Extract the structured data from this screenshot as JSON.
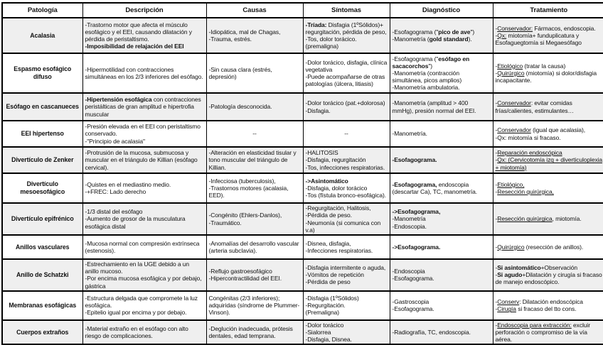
{
  "colors": {
    "shaded_row": "#efefef",
    "border": "#000000",
    "text": "#111111"
  },
  "table": {
    "headers": [
      "Patología",
      "Descripción",
      "Causas",
      "Síntomas",
      "Diagnóstico",
      "Tratamiento"
    ],
    "rows": [
      {
        "patologia": "Acalasia",
        "descripcion": [
          [
            {
              "t": "-Trastorno motor que afecta el músculo esofágico y el EEI, causando dilatación y pérdida de peristaltismo."
            }
          ],
          [
            {
              "t": "-Imposibilidad de relajación del EEI",
              "s": "b"
            }
          ]
        ],
        "causas": [
          [
            {
              "t": "-Idiopática, mal de Chagas,"
            }
          ],
          [
            {
              "t": "-Trauma, estrés."
            }
          ]
        ],
        "sintomas": [
          [
            {
              "t": "-Tríada:",
              "s": "b"
            },
            {
              "t": " Disfagia (1ºSólidos)+ regurgitación, pérdida de peso,"
            }
          ],
          [
            {
              "t": "-Tos, dolor torácico."
            }
          ],
          [
            {
              "t": "(premaligna)"
            }
          ]
        ],
        "diagnostico": [
          [
            {
              "t": "-Esofagograma (\""
            },
            {
              "t": "pico de ave",
              "s": "b"
            },
            {
              "t": "\")"
            }
          ],
          [
            {
              "t": "-Manometría ("
            },
            {
              "t": "gold standard",
              "s": "b"
            },
            {
              "t": ")."
            }
          ]
        ],
        "tratamiento": [
          [
            {
              "t": "-"
            },
            {
              "t": "Conservador:",
              "s": "u"
            },
            {
              "t": " Fármacos, endoscopia."
            }
          ],
          [
            {
              "t": "-"
            },
            {
              "t": "Qx:",
              "s": "u"
            },
            {
              "t": " miotomía+ funduplicatura y Esofaguegtomía si Megaesófago"
            }
          ]
        ]
      },
      {
        "patologia": "Espasmo esofágico difuso",
        "descripcion": [
          [
            {
              "t": "-Hipermotilidad con contracciones simultáneas en los 2/3 inferiores del esófago."
            }
          ]
        ],
        "causas": [
          [
            {
              "t": "-Sin causa clara (estrés, depresión)"
            }
          ]
        ],
        "sintomas": [
          [
            {
              "t": "-Dolor torácico, disfagia, clínica vegetativa"
            }
          ],
          [
            {
              "t": "-Puede acompañarse de otras patologías (úlcera, litiasis)"
            }
          ]
        ],
        "diagnostico": [
          [
            {
              "t": "-Esofagograma (\""
            },
            {
              "t": "esófago en sacacorchos",
              "s": "b"
            },
            {
              "t": "\")"
            }
          ],
          [
            {
              "t": "-Manometría (contracción simultánea, picos amplios)"
            }
          ],
          [
            {
              "t": "-Manometría ambulatoria."
            }
          ]
        ],
        "tratamiento": [
          [
            {
              "t": "-"
            },
            {
              "t": "Etiológico",
              "s": "u"
            },
            {
              "t": " (tratar la causa)"
            }
          ],
          [
            {
              "t": "-"
            },
            {
              "t": "Quirúrgico",
              "s": "u"
            },
            {
              "t": " (miotomía) si dolor/disfagia incapacitante."
            }
          ]
        ]
      },
      {
        "patologia": "Esófago en cascanueces",
        "descripcion": [
          [
            {
              "t": "-Hipertensión esofágica",
              "s": "b"
            },
            {
              "t": " con contracciones peristálticas de gran amplitud e hipertrofia muscular"
            }
          ]
        ],
        "causas": [
          [
            {
              "t": "-Patología desconocida."
            }
          ]
        ],
        "sintomas": [
          [
            {
              "t": "-Dolor torácico (pat.+dolorosa)"
            }
          ],
          [
            {
              "t": "-Disfagia."
            }
          ]
        ],
        "diagnostico": [
          [
            {
              "t": "-Manometría (amplitud > 400 mmHg), presión normal del EEI."
            }
          ]
        ],
        "tratamiento": [
          [
            {
              "t": "-"
            },
            {
              "t": "Conservador",
              "s": "u"
            },
            {
              "t": ": evitar comidas frías/calientes, estimulantes…"
            }
          ]
        ]
      },
      {
        "patologia": "EEI hipertenso",
        "descripcion": [
          [
            {
              "t": "-Presión elevada en el EEI con peristaltismo conservado."
            }
          ],
          [
            {
              "t": "-\"Principio de acalasia\""
            }
          ]
        ],
        "causas": [
          [
            {
              "t": "--"
            }
          ]
        ],
        "sintomas": [
          [
            {
              "t": "--"
            }
          ]
        ],
        "diagnostico": [
          [
            {
              "t": "-Manometría."
            }
          ]
        ],
        "tratamiento": [
          [
            {
              "t": "-"
            },
            {
              "t": "Conservador",
              "s": "u"
            },
            {
              "t": " (igual que acalasia),"
            }
          ],
          [
            {
              "t": "-Qx: miotomía si fracaso."
            }
          ]
        ]
      },
      {
        "patologia": "Divertículo de Zenker",
        "descripcion": [
          [
            {
              "t": "-Protrusión de la mucosa, submucosa y muscular en el triángulo de Killian (esófago cervical)."
            }
          ]
        ],
        "causas": [
          [
            {
              "t": "-Alteración en elasticidad tisular y tono muscular del triángulo de Killian."
            }
          ]
        ],
        "sintomas": [
          [
            {
              "t": "-HALITOSIS"
            }
          ],
          [
            {
              "t": "-Disfagia, regurgitación"
            }
          ],
          [
            {
              "t": "-Tos, infecciones respiratorias."
            }
          ]
        ],
        "diagnostico": [
          [
            {
              "t": "-Esofagograma.",
              "s": "b"
            }
          ]
        ],
        "tratamiento": [
          [
            {
              "t": "-"
            },
            {
              "t": "Reparación endoscópica",
              "s": "u"
            }
          ],
          [
            {
              "t": "-"
            },
            {
              "t": "Qx: (Cervicotomía izq + diverticuloplexia + miotomía)",
              "s": "u"
            }
          ]
        ]
      },
      {
        "patologia": "Divertículo mesoesofágico",
        "descripcion": [
          [
            {
              "t": "-Quistes en el mediastino medio."
            }
          ],
          [
            {
              "t": "-+FREC: Lado derecho"
            }
          ]
        ],
        "causas": [
          [
            {
              "t": "-Infecciosa (tuberculosis),"
            }
          ],
          [
            {
              "t": "-Trastornos motores (acalasia, EED)."
            }
          ]
        ],
        "sintomas": [
          [
            {
              "t": "->Asintomático",
              "s": "b"
            }
          ],
          [
            {
              "t": "-Disfagia, dolor torácico"
            }
          ],
          [
            {
              "t": "-Tos (fístula bronco-esofágica)."
            }
          ]
        ],
        "diagnostico": [
          [
            {
              "t": "-Esofagograma,",
              "s": "b"
            },
            {
              "t": " endoscopia (descartar Ca), TC, manometría."
            }
          ]
        ],
        "tratamiento": [
          [
            {
              "t": "-"
            },
            {
              "t": "Etiológico,",
              "s": "u"
            }
          ],
          [
            {
              "t": "-"
            },
            {
              "t": "Resección quirúrgica,",
              "s": "u"
            }
          ]
        ]
      },
      {
        "patologia": "Divertículo epifrénico",
        "descripcion": [
          [
            {
              "t": "-1/3 distal del esófago"
            }
          ],
          [
            {
              "t": "-Aumento de grosor de la musculatura esofágica distal"
            }
          ]
        ],
        "causas": [
          [
            {
              "t": "-Congénito (Ehlers-Danlos),"
            }
          ],
          [
            {
              "t": "-Traumático."
            }
          ]
        ],
        "sintomas": [
          [
            {
              "t": "-Regurgitación, Halitosis,"
            }
          ],
          [
            {
              "t": "-Pérdida de peso."
            }
          ],
          [
            {
              "t": "-Neumonía (si comunica con v.a)"
            }
          ]
        ],
        "diagnostico": [
          [
            {
              "t": "->Esofagograma,",
              "s": "b"
            }
          ],
          [
            {
              "t": "-Manometría"
            }
          ],
          [
            {
              "t": "-Endoscopia."
            }
          ]
        ],
        "tratamiento": [
          [
            {
              "t": "-"
            },
            {
              "t": "Resección quirúrgica",
              "s": "u"
            },
            {
              "t": ", miotomía."
            }
          ]
        ]
      },
      {
        "patologia": "Anillos vasculares",
        "descripcion": [
          [
            {
              "t": "-Mucosa normal con compresión extrínseca (estenosis)."
            }
          ]
        ],
        "causas": [
          [
            {
              "t": "-Anomalías del desarrollo vascular (arteria subclavia)."
            }
          ]
        ],
        "sintomas": [
          [
            {
              "t": "-Disnea, disfagia,"
            }
          ],
          [
            {
              "t": "-Infecciones respiratorias."
            }
          ]
        ],
        "diagnostico": [
          [
            {
              "t": "->Esofagograma.",
              "s": "b"
            }
          ]
        ],
        "tratamiento": [
          [
            {
              "t": "-"
            },
            {
              "t": "Quirúrgico",
              "s": "u"
            },
            {
              "t": " (resección de anillos)."
            }
          ]
        ]
      },
      {
        "patologia": "Anillo de Schatzki",
        "descripcion": [
          [
            {
              "t": "-Estrechamiento en la UGE debido a un anillo mucoso."
            }
          ],
          [
            {
              "t": "-Por encima mucosa esofágica y por debajo, gástrica"
            }
          ]
        ],
        "causas": [
          [
            {
              "t": "-Reflujo gastroesofágico"
            }
          ],
          [
            {
              "t": "-Hipercontractilidad del EEI."
            }
          ]
        ],
        "sintomas": [
          [
            {
              "t": "-Disfagia intermitente o aguda,"
            }
          ],
          [
            {
              "t": "-Vómitos de repetición"
            }
          ],
          [
            {
              "t": "-Pérdida de peso"
            }
          ]
        ],
        "diagnostico": [
          [
            {
              "t": "-Endoscopia"
            }
          ],
          [
            {
              "t": "-Esofagograma."
            }
          ]
        ],
        "tratamiento": [
          [
            {
              "t": "-"
            },
            {
              "t": "Si asintomático",
              "s": "b"
            },
            {
              "t": "+Observación"
            }
          ],
          [
            {
              "t": "-"
            },
            {
              "t": "Si agudo",
              "s": "b"
            },
            {
              "t": "+Dilatación y cirugía si fracaso de manejo endoscópico."
            }
          ]
        ]
      },
      {
        "patologia": "Membranas esofágicas",
        "descripcion": [
          [
            {
              "t": "-Estructura delgada que compromete la luz esofágica."
            }
          ],
          [
            {
              "t": "-Epitelio igual por encima y por debajo."
            }
          ]
        ],
        "causas": [
          [
            {
              "t": "Congénitas (2/3 inferiores); adquiridas (síndrome de Plummer-Vinson)."
            }
          ]
        ],
        "sintomas": [
          [
            {
              "t": "-Disfagia (1ºSólidos)"
            }
          ],
          [
            {
              "t": "-Regurgitación."
            }
          ],
          [
            {
              "t": "(Premaligna)"
            }
          ]
        ],
        "diagnostico": [
          [
            {
              "t": "-Gastroscopia"
            }
          ],
          [
            {
              "t": "-Esofagograma."
            }
          ]
        ],
        "tratamiento": [
          [
            {
              "t": "-"
            },
            {
              "t": "Conserv",
              "s": "u"
            },
            {
              "t": ": Dilatación endoscópica"
            }
          ],
          [
            {
              "t": "-"
            },
            {
              "t": "Cirugía",
              "s": "u"
            },
            {
              "t": " si fracaso del tto cons."
            }
          ]
        ]
      },
      {
        "patologia": "Cuerpos extraños",
        "descripcion": [
          [
            {
              "t": "-Material extraño en el esófago con alto riesgo de complicaciones."
            }
          ]
        ],
        "causas": [
          [
            {
              "t": "-Deglución inadecuada, prótesis dentales, edad temprana."
            }
          ]
        ],
        "sintomas": [
          [
            {
              "t": "-Dolor torácico"
            }
          ],
          [
            {
              "t": "-Sialorrea"
            }
          ],
          [
            {
              "t": "-Disfagia, Disnea."
            }
          ]
        ],
        "diagnostico": [
          [
            {
              "t": "-Radiografía, TC, endoscopia."
            }
          ]
        ],
        "tratamiento": [
          [
            {
              "t": "-"
            },
            {
              "t": "Endoscopia para extracción:",
              "s": "u"
            },
            {
              "t": " excluir perforación o compromiso de la vía aérea."
            }
          ]
        ]
      }
    ]
  }
}
